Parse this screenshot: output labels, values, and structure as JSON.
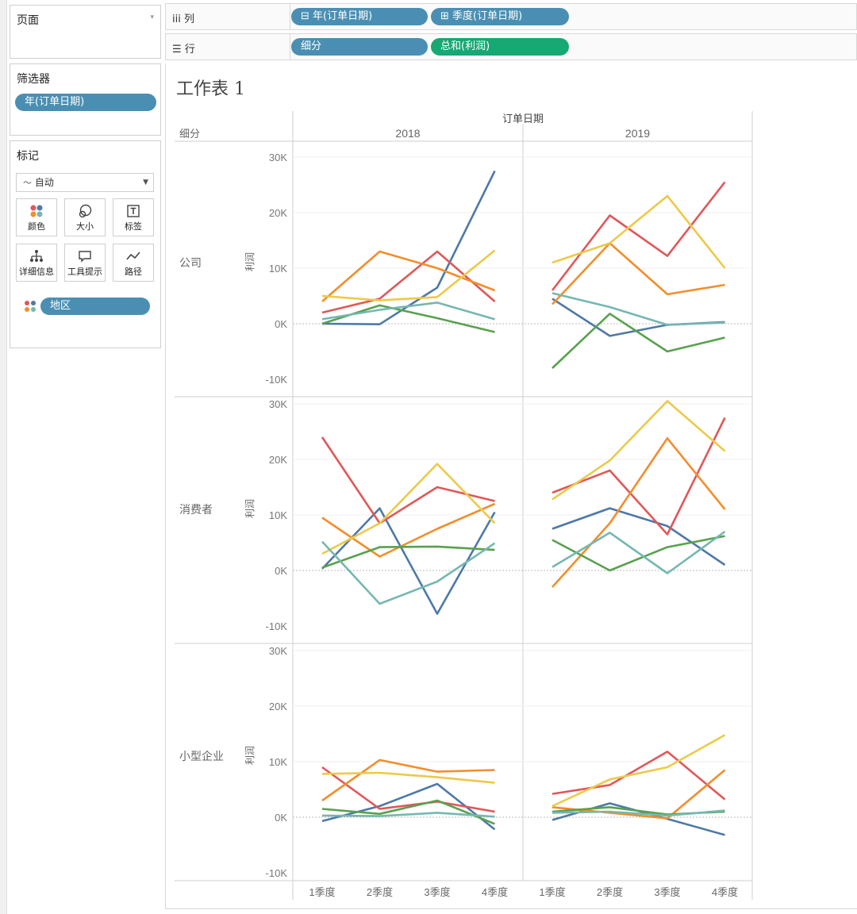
{
  "pages_card": {
    "title": "页面"
  },
  "filters_card": {
    "title": "筛选器",
    "pill": "年(订单日期)"
  },
  "marks_card": {
    "title": "标记",
    "mark_type": "自动",
    "buttons": [
      {
        "label": "颜色",
        "icon": "color-dots-icon"
      },
      {
        "label": "大小",
        "icon": "size-icon"
      },
      {
        "label": "标签",
        "icon": "label-icon"
      },
      {
        "label": "详细信息",
        "icon": "detail-icon"
      },
      {
        "label": "工具提示",
        "icon": "tooltip-icon"
      },
      {
        "label": "路径",
        "icon": "path-icon"
      }
    ],
    "color_field": "地区"
  },
  "columns_shelf": {
    "label": "列",
    "pills": [
      "⊟ 年(订单日期)",
      "⊞ 季度(订单日期)"
    ]
  },
  "rows_shelf": {
    "label": "行",
    "pills": [
      "细分",
      "总和(利润)"
    ]
  },
  "sheet": {
    "title": "工作表 1"
  },
  "colors": {
    "accent_blue": "#4a8fb3",
    "accent_green": "#17a874"
  },
  "chart_data": {
    "type": "line",
    "column_header": "订单日期",
    "row_header": "细分",
    "years": [
      "2018",
      "2019"
    ],
    "segments": [
      "公司",
      "消费者",
      "小型企业"
    ],
    "x_categories": [
      "1季度",
      "2季度",
      "3季度",
      "4季度"
    ],
    "ylabel": "利润",
    "ylim": [
      -10000,
      30000
    ],
    "yticks": [
      30000,
      20000,
      10000,
      0,
      -10000
    ],
    "ytick_labels": [
      "30K",
      "20K",
      "10K",
      "0K",
      "-10K"
    ],
    "color_legend_field": "地区",
    "series_colors": [
      "#4e79a7",
      "#e15759",
      "#f28e2b",
      "#edc948",
      "#59a14f",
      "#76b7b2"
    ],
    "panels": [
      {
        "segment": "公司",
        "year": "2018",
        "lines": [
          [
            0,
            -100,
            6500,
            27500
          ],
          [
            2000,
            4500,
            13000,
            4000
          ],
          [
            4000,
            13000,
            10000,
            6000
          ],
          [
            5000,
            4200,
            4800,
            13200
          ],
          [
            0,
            3300,
            1000,
            -1500
          ],
          [
            800,
            2500,
            3800,
            800
          ]
        ]
      },
      {
        "segment": "公司",
        "year": "2019",
        "lines": [
          [
            4500,
            -2200,
            -200,
            300
          ],
          [
            6000,
            19500,
            12200,
            25500
          ],
          [
            3500,
            14500,
            5300,
            7000
          ],
          [
            11000,
            14500,
            23000,
            10000
          ],
          [
            -8000,
            1800,
            -5000,
            -2500
          ],
          [
            5500,
            3000,
            -200,
            200
          ]
        ]
      },
      {
        "segment": "消费者",
        "year": "2018",
        "lines": [
          [
            300,
            11200,
            -7800,
            10500
          ],
          [
            24000,
            8500,
            15000,
            12500
          ],
          [
            9500,
            2500,
            7500,
            12000
          ],
          [
            3000,
            8500,
            19200,
            8500
          ],
          [
            500,
            4200,
            4300,
            3700
          ],
          [
            5200,
            -6000,
            -2000,
            4900
          ]
        ]
      },
      {
        "segment": "消费者",
        "year": "2019",
        "lines": [
          [
            7500,
            11200,
            8000,
            1000
          ],
          [
            14000,
            18000,
            6500,
            27500
          ],
          [
            -3000,
            8500,
            23800,
            11000
          ],
          [
            12800,
            19800,
            30500,
            21500
          ],
          [
            5500,
            0,
            4200,
            6200
          ],
          [
            600,
            6800,
            -500,
            7000
          ]
        ]
      },
      {
        "segment": "小型企业",
        "year": "2018",
        "lines": [
          [
            -700,
            2000,
            6000,
            -2200
          ],
          [
            9000,
            1500,
            2800,
            1000
          ],
          [
            3000,
            10300,
            8200,
            8500
          ],
          [
            7800,
            8000,
            7200,
            6200
          ],
          [
            1500,
            600,
            3000,
            -1200
          ],
          [
            300,
            200,
            800,
            100
          ]
        ]
      },
      {
        "segment": "小型企业",
        "year": "2019",
        "lines": [
          [
            -500,
            2500,
            -300,
            -3200
          ],
          [
            4200,
            5800,
            11800,
            3200
          ],
          [
            1800,
            800,
            -200,
            8500
          ],
          [
            2000,
            6800,
            9000,
            14800
          ],
          [
            1000,
            1800,
            500,
            1000
          ],
          [
            800,
            1000,
            300,
            1200
          ]
        ]
      }
    ]
  }
}
